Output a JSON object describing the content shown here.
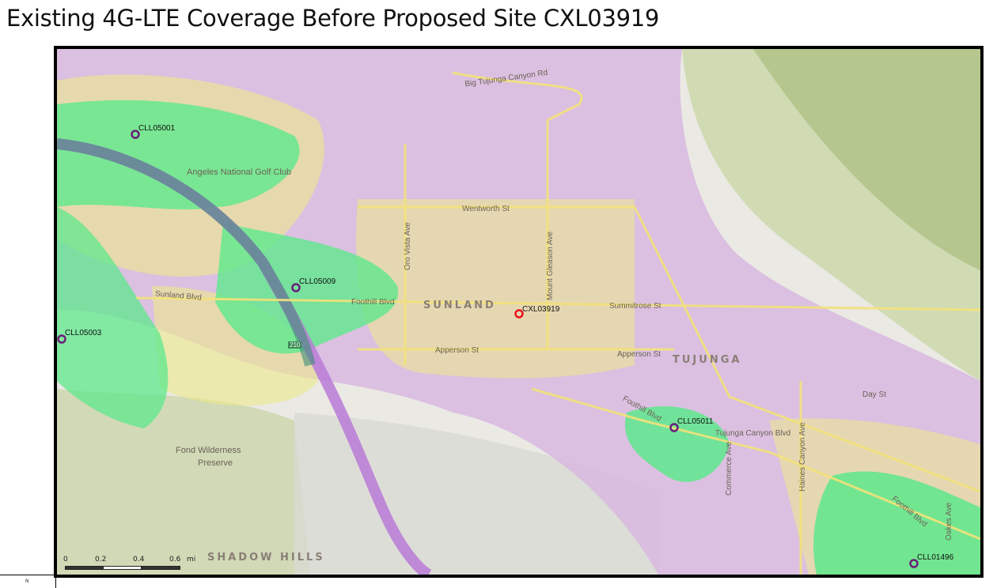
{
  "title": "Existing 4G-LTE Coverage Before Proposed Site CXL03919",
  "colors": {
    "good_coverage": "#5ee88c",
    "fair_coverage": "#ece98a",
    "poor_coverage": "#d8b8e0",
    "proposed_site": "#e8141c",
    "existing_site": "#6a1f7a",
    "highway": "#b87ad6"
  },
  "sites": {
    "proposed": {
      "id": "CXL03919"
    },
    "existing": [
      {
        "id": "CLL05001"
      },
      {
        "id": "CLL05009"
      },
      {
        "id": "CLL05003"
      },
      {
        "id": "CLL05011"
      },
      {
        "id": "CLL01496"
      }
    ]
  },
  "places": {
    "sunland": "SUNLAND",
    "tujunga": "TUJUNGA",
    "shadow_hills": "SHADOW HILLS",
    "golf": "Angeles National Golf Club",
    "preserve1": "Fond Wilderness",
    "preserve2": "Preserve"
  },
  "streets": {
    "big_tujunga": "Big Tujunga Canyon Rd",
    "wentworth": "Wentworth St",
    "foothill": "Foothill Blvd",
    "sunland_blvd": "Sunland Blvd",
    "summitrose": "Summitrose St",
    "apperson1": "Apperson St",
    "apperson2": "Apperson St",
    "oro_vista": "Oro Vista Ave",
    "mt_gleason": "Mount Gleason Ave",
    "commerce": "Commerce Ave",
    "haines": "Haines Canyon Ave",
    "day": "Day St",
    "tujunga_canyon": "Tujunga Canyon Blvd",
    "foothill2": "Foothill Blvd",
    "foothill3": "Foothill Blvd",
    "oakes": "Oakes Ave",
    "hwy": "210"
  },
  "scale_bar": {
    "ticks": [
      "0",
      "0.2",
      "0.4",
      "0.6"
    ],
    "unit": "mi"
  },
  "legend_label": "N"
}
